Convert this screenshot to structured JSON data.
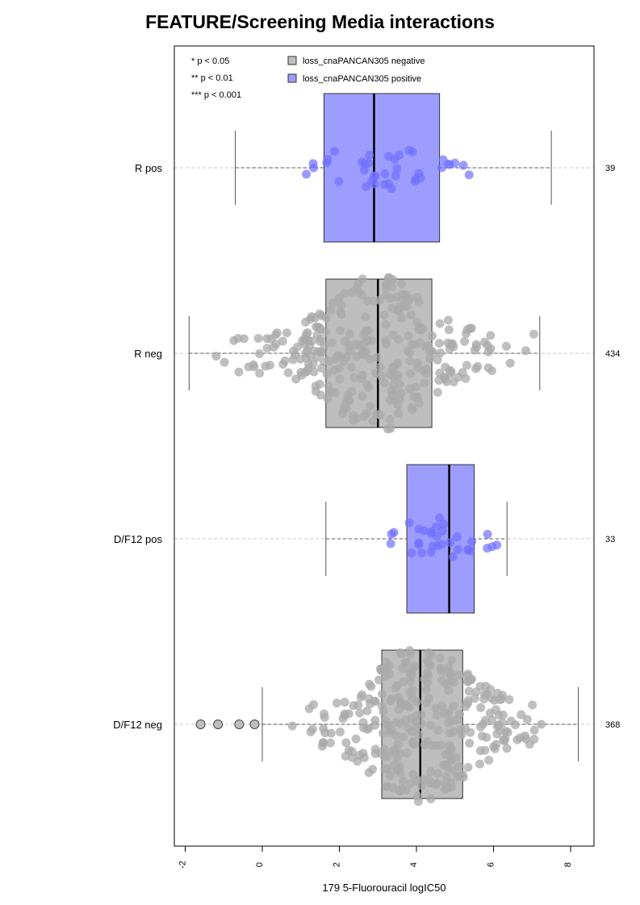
{
  "chart_data": {
    "type": "boxplot",
    "title": "FEATURE/Screening Media interactions",
    "xlabel": "179 5-Fluorouracil logIC50",
    "xlim": [
      -2.3,
      8.6
    ],
    "x_ticks": [
      -2,
      0,
      2,
      4,
      6,
      8
    ],
    "grid": false,
    "legend_position": "top",
    "significance_legend": [
      "* p < 0.05",
      "** p < 0.01",
      "*** p < 0.001"
    ],
    "legend": [
      {
        "label": "loss_cnaPANCAN305 negative",
        "color": "#bebebe"
      },
      {
        "label": "loss_cnaPANCAN305 positive",
        "color": "#9d9dff"
      }
    ],
    "groups": [
      {
        "label": "R pos",
        "n": "39",
        "status": "positive",
        "whisker_low": -0.7,
        "q1": 1.6,
        "median": 2.9,
        "q3": 4.6,
        "whisker_high": 7.5,
        "outliers": []
      },
      {
        "label": "R neg",
        "n": "434",
        "status": "negative",
        "whisker_low": -1.9,
        "q1": 1.65,
        "median": 3.0,
        "q3": 4.4,
        "whisker_high": 7.2,
        "outliers": []
      },
      {
        "label": "D/F12 pos",
        "n": "33",
        "status": "positive",
        "whisker_low": 1.65,
        "q1": 3.75,
        "median": 4.85,
        "q3": 5.5,
        "whisker_high": 6.35,
        "outliers": []
      },
      {
        "label": "D/F12 neg",
        "n": "368",
        "status": "negative",
        "whisker_low": 0.0,
        "q1": 3.1,
        "median": 4.1,
        "q3": 5.2,
        "whisker_high": 8.2,
        "outliers": [
          -1.6,
          -1.15,
          -0.6,
          -0.2
        ]
      }
    ]
  },
  "colors": {
    "negative_fill": "#bebebe",
    "positive_fill": "#9d9dff",
    "negative_point": "#a9a9a9",
    "positive_point": "#7070ff",
    "ref_line": "#c8c8c8"
  }
}
